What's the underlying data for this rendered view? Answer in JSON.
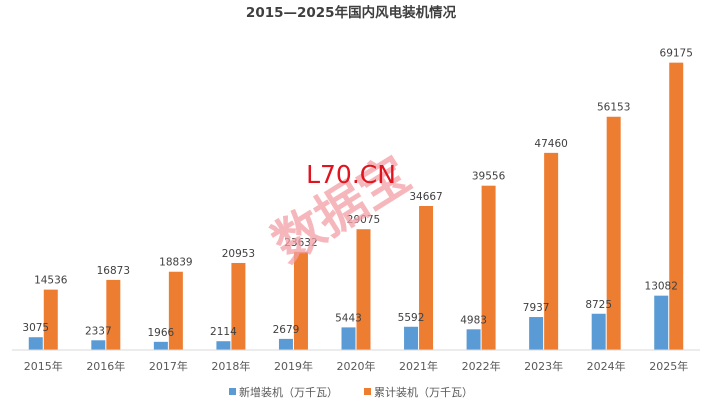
{
  "chart_data": {
    "type": "bar",
    "title": "2015—2025年国内风电装机情况",
    "categories": [
      "2015年",
      "2016年",
      "2017年",
      "2018年",
      "2019年",
      "2020年",
      "2021年",
      "2022年",
      "2023年",
      "2024年",
      "2025年"
    ],
    "series": [
      {
        "name": "新增装机（万千瓦）",
        "color": "#5b9bd5",
        "values": [
          3075,
          2337,
          1966,
          2114,
          2679,
          5443,
          5592,
          4983,
          7937,
          8725,
          13082
        ]
      },
      {
        "name": "累计装机（万千瓦）",
        "color": "#ed7d31",
        "values": [
          14536,
          16873,
          18839,
          20953,
          23632,
          29075,
          34667,
          39556,
          47460,
          56153,
          69175
        ]
      }
    ],
    "ylim": [
      0,
      78000
    ],
    "grid": false,
    "legend_position": "bottom",
    "xlabel": "",
    "ylabel": ""
  },
  "watermark": {
    "site": "L70.CN",
    "stamp": "数据宝"
  }
}
